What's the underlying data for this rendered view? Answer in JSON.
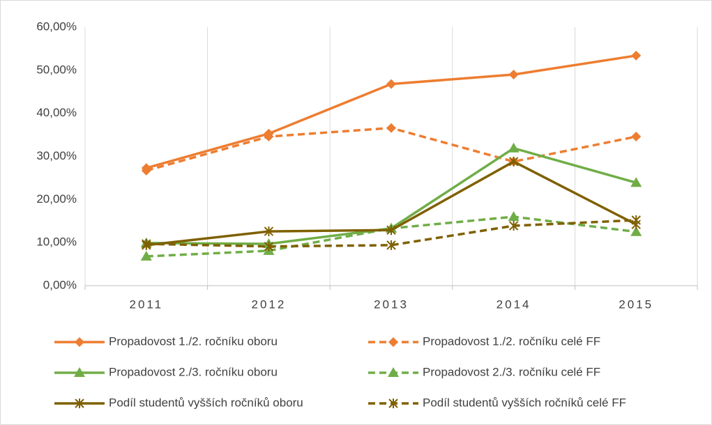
{
  "chart_data": {
    "type": "line",
    "categories": [
      "2011",
      "2012",
      "2013",
      "2014",
      "2015"
    ],
    "ylim": [
      0,
      60
    ],
    "yticks": [
      {
        "value": 0,
        "label": "0,00%"
      },
      {
        "value": 10,
        "label": "10,00%"
      },
      {
        "value": 20,
        "label": "20,00%"
      },
      {
        "value": 30,
        "label": "30,00%"
      },
      {
        "value": 40,
        "label": "40,00%"
      },
      {
        "value": 50,
        "label": "50,00%"
      },
      {
        "value": 60,
        "label": "60,00%"
      }
    ],
    "grid": "x",
    "legend": "bottom",
    "series": [
      {
        "name": "Propadovost 1./2. ročníku oboru",
        "color": "#ed7d31",
        "marker": "diamond",
        "dashed": false,
        "values": [
          27.3,
          35.3,
          46.8,
          49.0,
          53.4
        ]
      },
      {
        "name": "Propadovost 1./2. ročníku celé FF",
        "color": "#ed7d31",
        "marker": "diamond",
        "dashed": true,
        "values": [
          26.7,
          34.6,
          36.6,
          28.8,
          34.6
        ]
      },
      {
        "name": "Propadovost 2./3. ročníku oboru",
        "color": "#70ad47",
        "marker": "triangle",
        "dashed": false,
        "values": [
          9.9,
          9.7,
          13.3,
          31.9,
          23.9
        ]
      },
      {
        "name": "Propadovost 2./3. ročníku celé FF",
        "color": "#70ad47",
        "marker": "triangle",
        "dashed": true,
        "values": [
          6.8,
          8.1,
          13.3,
          16.0,
          12.5
        ]
      },
      {
        "name": "Podíl studentů vyšších ročníků oboru",
        "color": "#7f6000",
        "marker": "star",
        "dashed": false,
        "values": [
          9.4,
          12.6,
          12.9,
          28.8,
          14.2
        ]
      },
      {
        "name": "Podíl studentů vyšších ročníků celé FF",
        "color": "#7f6000",
        "marker": "star",
        "dashed": true,
        "values": [
          9.7,
          9.1,
          9.4,
          13.9,
          15.2
        ]
      }
    ]
  }
}
